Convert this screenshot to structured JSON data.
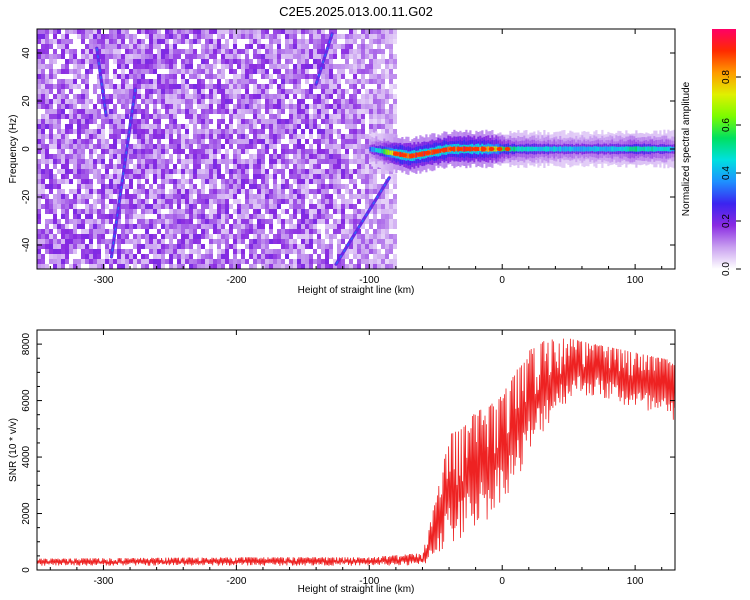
{
  "figure": {
    "title": "C2E5.2025.013.00.11.G02"
  },
  "chart_data": [
    {
      "type": "heatmap",
      "title": "C2E5.2025.013.00.11.G02",
      "xlabel": "Height of straight line (km)",
      "ylabel": "Frequency (Hz)",
      "xlim": [
        -350,
        130
      ],
      "ylim": [
        -50,
        50
      ],
      "x_ticks": [
        -300,
        -200,
        -100,
        0,
        100
      ],
      "y_ticks": [
        -40,
        -20,
        0,
        20,
        40
      ],
      "grid": false,
      "colorbar": {
        "label": "Normalized spectral amplitude",
        "range": [
          0,
          1
        ],
        "ticks": [
          0.0,
          0.2,
          0.4,
          0.6,
          0.8
        ],
        "colors": [
          "#ffffff",
          "#c9a0f0",
          "#8a2be2",
          "#3b24f0",
          "#1e90ff",
          "#00e0e0",
          "#00e060",
          "#7cfc00",
          "#e0f000",
          "#ff9a00",
          "#ff2a00",
          "#ff0066"
        ]
      },
      "noise_region": {
        "x_start": -350,
        "x_end": -82,
        "amplitude": 0.2
      },
      "diagonal_lines": [
        {
          "points": [
            [
              -305,
              42
            ],
            [
              -298,
              14
            ]
          ]
        },
        {
          "points": [
            [
              -276,
              25
            ],
            [
              -294,
              -45
            ]
          ]
        },
        {
          "points": [
            [
              -128,
              48
            ],
            [
              -140,
              27
            ]
          ]
        },
        {
          "points": [
            [
              -85,
              -12
            ],
            [
              -125,
              -48
            ]
          ]
        }
      ],
      "ridge": {
        "x": [
          -100,
          -90,
          -80,
          -70,
          -60,
          -50,
          -40,
          -30,
          -20,
          -10,
          0,
          20,
          50,
          80,
          100,
          130
        ],
        "y": [
          0,
          -1,
          -2,
          -3,
          -2,
          -1,
          0,
          0,
          0,
          0,
          0,
          0,
          0,
          0,
          0,
          0
        ],
        "amplitude": [
          0.35,
          0.6,
          0.95,
          0.95,
          0.95,
          0.95,
          0.95,
          0.95,
          0.95,
          0.9,
          0.6,
          0.5,
          0.45,
          0.45,
          0.55,
          0.45
        ]
      }
    },
    {
      "type": "line",
      "xlabel": "Height of straight line (km)",
      "ylabel": "SNR (10 * v/v)",
      "xlim": [
        -350,
        130
      ],
      "ylim": [
        0,
        8500
      ],
      "x_ticks": [
        -300,
        -200,
        -100,
        0,
        100
      ],
      "y_ticks": [
        0,
        2000,
        4000,
        6000,
        8000
      ],
      "grid": false,
      "color": "#ee2222",
      "envelope": {
        "x": [
          -350,
          -300,
          -200,
          -100,
          -60,
          -55,
          -50,
          -40,
          -30,
          -20,
          -10,
          0,
          10,
          20,
          30,
          40,
          50,
          60,
          80,
          100,
          120,
          130
        ],
        "low": [
          150,
          150,
          150,
          150,
          150,
          300,
          500,
          800,
          1000,
          1500,
          1800,
          2500,
          3000,
          3800,
          4800,
          5500,
          6000,
          6200,
          6000,
          5600,
          5300,
          5000
        ],
        "high": [
          400,
          420,
          450,
          450,
          600,
          1500,
          2500,
          4800,
          5000,
          5600,
          5800,
          6200,
          7000,
          7800,
          8100,
          8200,
          8200,
          8100,
          7900,
          7700,
          7500,
          7400
        ]
      }
    }
  ]
}
